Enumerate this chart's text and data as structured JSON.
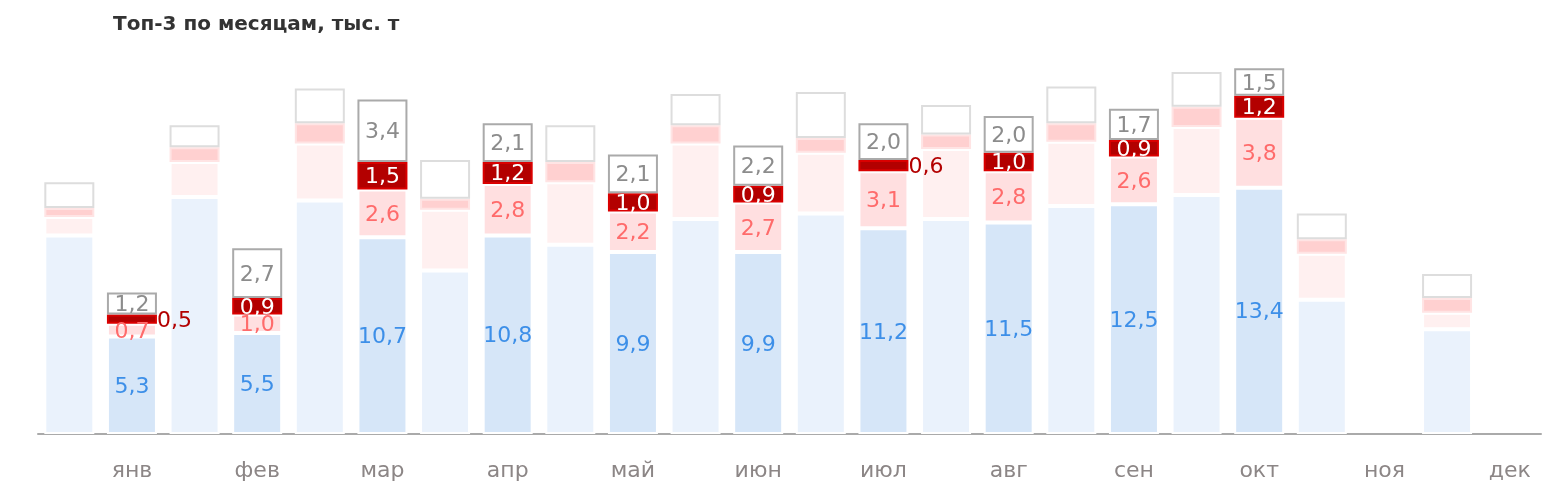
{
  "chart_data": {
    "type": "bar",
    "title": "Топ-3 по месяцам, тыс. т",
    "stacked": true,
    "grid": false,
    "categories": [
      null,
      "янв",
      null,
      "фев",
      null,
      "мар",
      null,
      "апр",
      null,
      "май",
      null,
      "июн",
      null,
      "июл",
      null,
      "авг",
      null,
      "сен",
      null,
      "окт",
      null,
      "ноя",
      null,
      "дек"
    ],
    "series": [
      {
        "color": "#eaf2fc",
        "values": [
          10.8,
          null,
          12.9,
          null,
          12.7,
          null,
          8.9,
          null,
          10.3,
          null,
          11.7,
          null,
          12.0,
          null,
          11.7,
          null,
          12.4,
          null,
          13.0,
          null,
          7.3,
          null,
          5.7,
          null
        ]
      },
      {
        "color": "#fff0f0",
        "values": [
          1.0,
          null,
          1.9,
          null,
          3.1,
          null,
          3.3,
          null,
          3.4,
          null,
          4.1,
          null,
          3.3,
          null,
          3.8,
          null,
          3.5,
          null,
          3.7,
          null,
          2.5,
          null,
          0.9,
          null
        ]
      },
      {
        "color": "#ffd0d0",
        "values": [
          0.5,
          null,
          0.8,
          null,
          1.1,
          null,
          0.6,
          null,
          1.1,
          null,
          1.0,
          null,
          0.8,
          null,
          0.8,
          null,
          1.0,
          null,
          1.1,
          null,
          0.8,
          null,
          0.8,
          null
        ]
      },
      {
        "color": "#ffffff",
        "values": [
          1.4,
          null,
          1.2,
          null,
          1.9,
          null,
          2.1,
          null,
          2.0,
          null,
          1.7,
          null,
          2.5,
          null,
          1.6,
          null,
          2.0,
          null,
          1.9,
          null,
          1.4,
          null,
          1.3,
          null
        ]
      },
      {
        "color": "#d6e6f8",
        "values": [
          null,
          5.3,
          null,
          5.5,
          null,
          10.7,
          null,
          10.8,
          null,
          9.9,
          null,
          9.9,
          null,
          11.2,
          null,
          11.5,
          null,
          12.5,
          null,
          13.4,
          null,
          null,
          null,
          null
        ],
        "value_labels": [
          null,
          "5,3",
          null,
          "5,5",
          null,
          "10,7",
          null,
          "10,8",
          null,
          "9,9",
          null,
          "9,9",
          null,
          "11,2",
          null,
          "11,5",
          null,
          "12,5",
          null,
          "13,4",
          null,
          null,
          null,
          null
        ]
      },
      {
        "color": "#ffdfe0",
        "values": [
          null,
          0.7,
          null,
          1.0,
          null,
          2.6,
          null,
          2.8,
          null,
          2.2,
          null,
          2.7,
          null,
          3.1,
          null,
          2.8,
          null,
          2.6,
          null,
          3.8,
          null,
          null,
          null,
          null
        ],
        "value_labels": [
          null,
          "0,7",
          null,
          "1,0",
          null,
          "2,6",
          null,
          "2,8",
          null,
          "2,2",
          null,
          "2,7",
          null,
          "3,1",
          null,
          "2,8",
          null,
          "2,6",
          null,
          "3,8",
          null,
          null,
          null,
          null
        ]
      },
      {
        "color": "#b30000",
        "values": [
          null,
          0.5,
          null,
          0.9,
          null,
          1.5,
          null,
          1.2,
          null,
          1.0,
          null,
          0.9,
          null,
          0.6,
          null,
          1.0,
          null,
          0.9,
          null,
          1.2,
          null,
          null,
          null,
          null
        ],
        "value_labels": [
          null,
          "0,5",
          null,
          "0,9",
          null,
          "1,5",
          null,
          "1,2",
          null,
          "1,0",
          null,
          "0,9",
          null,
          "0,6",
          null,
          "1,0",
          null,
          "0,9",
          null,
          "1,2",
          null,
          null,
          null,
          null
        ]
      },
      {
        "color": "#ffffff",
        "values": [
          null,
          1.2,
          null,
          2.7,
          null,
          3.4,
          null,
          2.1,
          null,
          2.1,
          null,
          2.2,
          null,
          2.0,
          null,
          2.0,
          null,
          1.7,
          null,
          1.5,
          null,
          null,
          null,
          null
        ],
        "value_labels": [
          null,
          "1,2",
          null,
          "2,7",
          null,
          "3,4",
          null,
          "2,1",
          null,
          "2,1",
          null,
          "2,2",
          null,
          "2,0",
          null,
          "2,0",
          null,
          "1,7",
          null,
          "1,5",
          null,
          null,
          null,
          null
        ]
      }
    ]
  }
}
